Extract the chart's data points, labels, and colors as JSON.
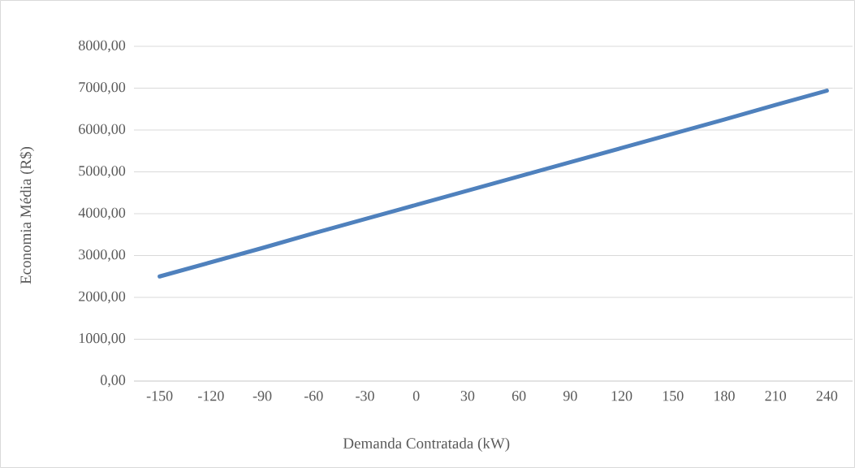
{
  "chart_data": {
    "type": "line",
    "xlabel": "Demanda Contratada (kW)",
    "ylabel": "Economia Média (R$)",
    "categories": [
      "-150",
      "-120",
      "-90",
      "-60",
      "-30",
      "0",
      "30",
      "60",
      "90",
      "120",
      "150",
      "180",
      "210",
      "240"
    ],
    "values": [
      2500,
      2840,
      3180,
      3530,
      3870,
      4210,
      4550,
      4890,
      5230,
      5570,
      5910,
      6250,
      6600,
      6940
    ],
    "color": "#4f81bd",
    "ylim": [
      0,
      8000
    ],
    "yticks": [
      {
        "value": 0,
        "label": "0,00"
      },
      {
        "value": 1000,
        "label": "1000,00"
      },
      {
        "value": 2000,
        "label": "2000,00"
      },
      {
        "value": 3000,
        "label": "3000,00"
      },
      {
        "value": 4000,
        "label": "4000,00"
      },
      {
        "value": 5000,
        "label": "5000,00"
      },
      {
        "value": 6000,
        "label": "6000,00"
      },
      {
        "value": 7000,
        "label": "7000,00"
      },
      {
        "value": 8000,
        "label": "8000,00"
      }
    ],
    "grid": "y"
  }
}
